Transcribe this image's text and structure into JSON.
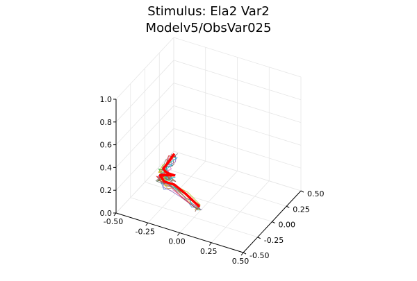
{
  "chart_data": {
    "type": "line",
    "projection": "3d",
    "title_line1": "Stimulus: Ela2 Var2",
    "title_line2": "Modelv5/ObsVar025",
    "xlabel": "",
    "ylabel": "",
    "zlabel": "",
    "xlim": [
      -0.5,
      0.5
    ],
    "ylim": [
      -0.5,
      0.5
    ],
    "zlim": [
      0.0,
      1.0
    ],
    "x_ticks": [
      "-0.50",
      "-0.25",
      "0.00",
      "0.25",
      "0.50"
    ],
    "y_ticks": [
      "-0.50",
      "-0.25",
      "0.00",
      "0.25",
      "0.50"
    ],
    "z_ticks": [
      "0.0",
      "0.2",
      "0.4",
      "0.6",
      "0.8",
      "1.0"
    ],
    "grid": true,
    "legend": "none",
    "highlight_color": "#ff0000",
    "highlight_series": {
      "x": [
        0.13,
        0.07,
        -0.03,
        -0.15,
        -0.23,
        -0.29,
        -0.29,
        -0.29,
        -0.27,
        -0.33,
        -0.37,
        -0.4,
        -0.41,
        -0.42,
        -0.44,
        -0.45
      ],
      "y": [
        -0.44,
        -0.4,
        -0.33,
        -0.26,
        -0.26,
        -0.2,
        -0.16,
        -0.08,
        0.0,
        0.03,
        0.06,
        0.1,
        0.18,
        0.26,
        0.34,
        0.4
      ],
      "z": [
        0.24,
        0.24,
        0.24,
        0.24,
        0.24,
        0.24,
        0.22,
        0.18,
        0.14,
        0.12,
        0.11,
        0.1,
        0.09,
        0.08,
        0.06,
        0.05
      ]
    },
    "sample_series_colors": [
      "#5b9bd5",
      "#e6a23c",
      "#2ca02c",
      "#9467bd",
      "#8c564b",
      "#e377c2",
      "#7f7f7f",
      "#bcbd22",
      "#17becf",
      "#d62728"
    ]
  }
}
